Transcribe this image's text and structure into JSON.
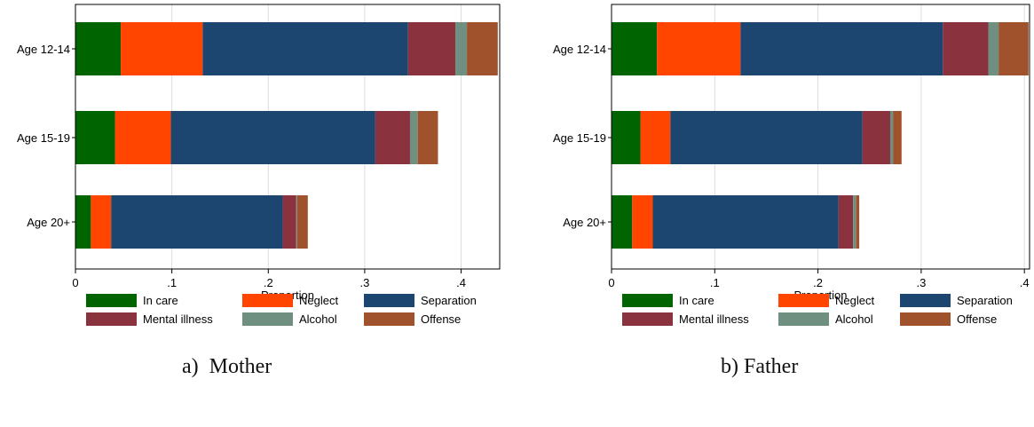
{
  "captions": [
    "a)  Mother",
    "b) Father"
  ],
  "chart_data": [
    {
      "type": "bar",
      "orientation": "horizontal",
      "stacked": true,
      "categories": [
        "Age 12-14",
        "Age 15-19",
        "Age 20+"
      ],
      "xlabel": "Proportion",
      "xlim": [
        0,
        0.44
      ],
      "xticks": [
        0,
        0.1,
        0.2,
        0.3,
        0.4
      ],
      "xtick_labels": [
        "0",
        ".1",
        ".2",
        ".3",
        ".4"
      ],
      "grid": "vertical",
      "legend_position": "bottom",
      "series": [
        {
          "name": "In care",
          "color": "#006400",
          "values": [
            0.047,
            0.041,
            0.016
          ]
        },
        {
          "name": "Neglect",
          "color": "#ff4500",
          "values": [
            0.085,
            0.058,
            0.021
          ]
        },
        {
          "name": "Separation",
          "color": "#1c4670",
          "values": [
            0.213,
            0.212,
            0.178
          ]
        },
        {
          "name": "Mental illness",
          "color": "#8b323f",
          "values": [
            0.049,
            0.036,
            0.014
          ]
        },
        {
          "name": "Alcohol",
          "color": "#6f9080",
          "values": [
            0.012,
            0.008,
            0.001
          ]
        },
        {
          "name": "Offense",
          "color": "#a0522d",
          "values": [
            0.032,
            0.021,
            0.011
          ]
        }
      ]
    },
    {
      "type": "bar",
      "orientation": "horizontal",
      "stacked": true,
      "categories": [
        "Age 12-14",
        "Age 15-19",
        "Age 20+"
      ],
      "xlabel": "Proportion",
      "xlim": [
        0,
        0.405
      ],
      "xticks": [
        0,
        0.1,
        0.2,
        0.3,
        0.4
      ],
      "xtick_labels": [
        "0",
        ".1",
        ".2",
        ".3",
        ".4"
      ],
      "grid": "vertical",
      "legend_position": "bottom",
      "series": [
        {
          "name": "In care",
          "color": "#006400",
          "values": [
            0.044,
            0.028,
            0.02
          ]
        },
        {
          "name": "Neglect",
          "color": "#ff4500",
          "values": [
            0.081,
            0.029,
            0.02
          ]
        },
        {
          "name": "Separation",
          "color": "#1c4670",
          "values": [
            0.196,
            0.186,
            0.18
          ]
        },
        {
          "name": "Mental illness",
          "color": "#8b323f",
          "values": [
            0.044,
            0.027,
            0.014
          ]
        },
        {
          "name": "Alcohol",
          "color": "#6f9080",
          "values": [
            0.01,
            0.003,
            0.003
          ]
        },
        {
          "name": "Offense",
          "color": "#a0522d",
          "values": [
            0.029,
            0.008,
            0.003
          ]
        }
      ]
    }
  ]
}
